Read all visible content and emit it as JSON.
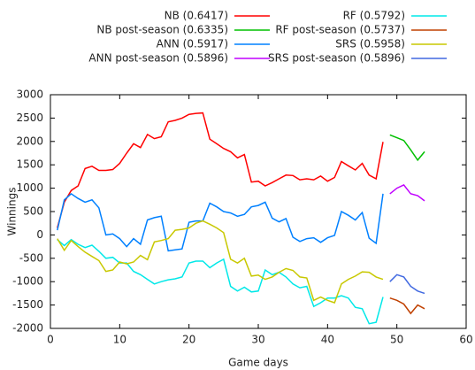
{
  "chart_data": {
    "type": "line",
    "xlabel": "Game days",
    "ylabel": "Winnings",
    "xlim": [
      0,
      60
    ],
    "xticks": [
      0,
      10,
      20,
      30,
      40,
      50,
      60
    ],
    "ylim": [
      -2000,
      3000
    ],
    "yticks": [
      -2000,
      -1500,
      -1000,
      -500,
      0,
      500,
      1000,
      1500,
      2000,
      2500,
      3000
    ],
    "grid": false,
    "legend": "top",
    "series": [
      {
        "name": "NB (0.6417)",
        "color": "#ff0000",
        "x": [
          1,
          2,
          3,
          4,
          5,
          6,
          7,
          8,
          9,
          10,
          11,
          12,
          13,
          14,
          15,
          16,
          17,
          18,
          19,
          20,
          21,
          22,
          23,
          24,
          25,
          26,
          27,
          28,
          29,
          30,
          31,
          32,
          33,
          34,
          35,
          36,
          37,
          38,
          39,
          40,
          41,
          42,
          43,
          44,
          45,
          46,
          47,
          48
        ],
        "values": [
          150,
          700,
          950,
          1050,
          1420,
          1470,
          1380,
          1380,
          1400,
          1530,
          1750,
          1950,
          1870,
          2150,
          2060,
          2100,
          2420,
          2450,
          2500,
          2580,
          2600,
          2610,
          2050,
          1950,
          1850,
          1780,
          1650,
          1720,
          1130,
          1150,
          1050,
          1120,
          1200,
          1280,
          1270,
          1180,
          1200,
          1180,
          1260,
          1150,
          1230,
          1570,
          1480,
          1390,
          1530,
          1280,
          1200,
          1990
        ]
      },
      {
        "name": "NB post-season (0.6335)",
        "color": "#00c000",
        "x": [
          49,
          50,
          51,
          52,
          53,
          54
        ],
        "values": [
          2140,
          2080,
          2020,
          1820,
          1600,
          1780
        ]
      },
      {
        "name": "ANN (0.5917)",
        "color": "#0080ff",
        "x": [
          1,
          2,
          3,
          4,
          5,
          6,
          7,
          8,
          9,
          10,
          11,
          12,
          13,
          14,
          15,
          16,
          17,
          18,
          19,
          20,
          21,
          22,
          23,
          24,
          25,
          26,
          27,
          28,
          29,
          30,
          31,
          32,
          33,
          34,
          35,
          36,
          37,
          38,
          39,
          40,
          41,
          42,
          43,
          44,
          45,
          46,
          47,
          48
        ],
        "values": [
          100,
          750,
          880,
          780,
          700,
          750,
          580,
          0,
          20,
          -80,
          -250,
          -80,
          -200,
          320,
          370,
          400,
          -340,
          -320,
          -300,
          270,
          300,
          300,
          680,
          600,
          500,
          470,
          400,
          440,
          600,
          630,
          700,
          360,
          280,
          350,
          -50,
          -140,
          -80,
          -60,
          -160,
          -60,
          -10,
          500,
          420,
          320,
          480,
          -70,
          -180,
          880
        ]
      },
      {
        "name": "ANN post-season (0.5896)",
        "color": "#c000ff",
        "x": [
          49,
          50,
          51,
          52,
          53,
          54
        ],
        "values": [
          880,
          1000,
          1070,
          880,
          840,
          730
        ]
      },
      {
        "name": "RF (0.5792)",
        "color": "#00e8e8",
        "x": [
          1,
          2,
          3,
          4,
          5,
          6,
          7,
          8,
          9,
          10,
          11,
          12,
          13,
          14,
          15,
          16,
          17,
          18,
          19,
          20,
          21,
          22,
          23,
          24,
          25,
          26,
          27,
          28,
          29,
          30,
          31,
          32,
          33,
          34,
          35,
          36,
          37,
          38,
          39,
          40,
          41,
          42,
          43,
          44,
          45,
          46,
          47,
          48
        ],
        "values": [
          -100,
          -230,
          -100,
          -200,
          -270,
          -220,
          -350,
          -500,
          -480,
          -600,
          -600,
          -780,
          -850,
          -950,
          -1050,
          -1000,
          -960,
          -940,
          -900,
          -600,
          -560,
          -560,
          -700,
          -600,
          -520,
          -1100,
          -1200,
          -1120,
          -1220,
          -1200,
          -750,
          -850,
          -800,
          -900,
          -1050,
          -1130,
          -1100,
          -1530,
          -1450,
          -1350,
          -1350,
          -1300,
          -1350,
          -1550,
          -1580,
          -1900,
          -1870,
          -1330
        ]
      },
      {
        "name": "RF post-season (0.5737)",
        "color": "#c04000",
        "x": [
          49,
          50,
          51,
          52,
          53,
          54
        ],
        "values": [
          -1350,
          -1400,
          -1480,
          -1680,
          -1500,
          -1580
        ]
      },
      {
        "name": "SRS (0.5958)",
        "color": "#c8c800",
        "x": [
          1,
          2,
          3,
          4,
          5,
          6,
          7,
          8,
          9,
          10,
          11,
          12,
          13,
          14,
          15,
          16,
          17,
          18,
          19,
          20,
          21,
          22,
          23,
          24,
          25,
          26,
          27,
          28,
          29,
          30,
          31,
          32,
          33,
          34,
          35,
          36,
          37,
          38,
          39,
          40,
          41,
          42,
          43,
          44,
          45,
          46,
          47,
          48
        ],
        "values": [
          -80,
          -330,
          -120,
          -250,
          -370,
          -460,
          -550,
          -780,
          -750,
          -580,
          -620,
          -580,
          -440,
          -530,
          -150,
          -120,
          -80,
          100,
          120,
          150,
          250,
          300,
          230,
          150,
          50,
          -520,
          -600,
          -500,
          -880,
          -860,
          -950,
          -900,
          -800,
          -720,
          -760,
          -900,
          -920,
          -1400,
          -1330,
          -1400,
          -1450,
          -1050,
          -950,
          -880,
          -790,
          -800,
          -900,
          -950
        ]
      },
      {
        "name": "SRS post-season (0.5896)",
        "color": "#4169e1",
        "x": [
          49,
          50,
          51,
          52,
          53,
          54
        ],
        "values": [
          -1000,
          -850,
          -900,
          -1100,
          -1200,
          -1250
        ]
      }
    ]
  }
}
